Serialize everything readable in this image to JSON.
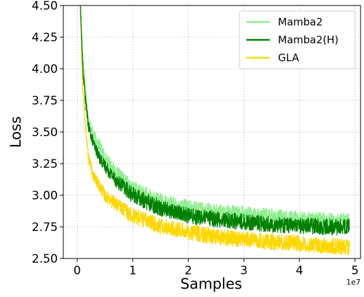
{
  "chart_data": {
    "type": "line",
    "xlabel": "Samples",
    "ylabel": "Loss",
    "x_offset_label": "1e7",
    "xlim": [
      -0.25,
      5.1
    ],
    "ylim": [
      2.5,
      4.5
    ],
    "x_ticks": [
      0,
      1,
      2,
      3,
      4,
      5
    ],
    "x_tick_labels": [
      "0",
      "1",
      "2",
      "3",
      "4",
      "5"
    ],
    "y_ticks": [
      2.5,
      2.75,
      3.0,
      3.25,
      3.5,
      3.75,
      4.0,
      4.25,
      4.5
    ],
    "y_tick_labels": [
      "2.50",
      "2.75",
      "3.00",
      "3.25",
      "3.50",
      "3.75",
      "4.00",
      "4.25",
      "4.50"
    ],
    "grid": true,
    "legend_position": "top-right",
    "series": [
      {
        "name": "Mamba2",
        "color": "#90ee90",
        "x": [
          0.05,
          0.1,
          0.15,
          0.2,
          0.3,
          0.4,
          0.5,
          0.7,
          1.0,
          1.5,
          2.0,
          2.5,
          3.0,
          3.5,
          4.0,
          4.5,
          4.9
        ],
        "y": [
          4.6,
          4.1,
          3.85,
          3.6,
          3.47,
          3.4,
          3.3,
          3.18,
          3.05,
          2.95,
          2.9,
          2.87,
          2.85,
          2.83,
          2.81,
          2.8,
          2.8
        ]
      },
      {
        "name": "Mamba2(H)",
        "color": "#008000",
        "x": [
          0.05,
          0.1,
          0.15,
          0.2,
          0.3,
          0.4,
          0.5,
          0.7,
          1.0,
          1.5,
          2.0,
          2.5,
          3.0,
          3.5,
          4.0,
          4.5,
          4.9
        ],
        "y": [
          4.6,
          4.0,
          3.75,
          3.55,
          3.4,
          3.3,
          3.23,
          3.12,
          3.0,
          2.9,
          2.84,
          2.81,
          2.79,
          2.77,
          2.76,
          2.75,
          2.75
        ]
      },
      {
        "name": "GLA",
        "color": "#ffd700",
        "x": [
          0.05,
          0.1,
          0.15,
          0.2,
          0.3,
          0.4,
          0.5,
          0.7,
          1.0,
          1.5,
          2.0,
          2.5,
          3.0,
          3.5,
          4.0,
          4.5,
          4.9
        ],
        "y": [
          4.6,
          3.85,
          3.55,
          3.3,
          3.15,
          3.07,
          3.0,
          2.93,
          2.84,
          2.76,
          2.71,
          2.67,
          2.65,
          2.63,
          2.62,
          2.6,
          2.59
        ]
      }
    ]
  }
}
